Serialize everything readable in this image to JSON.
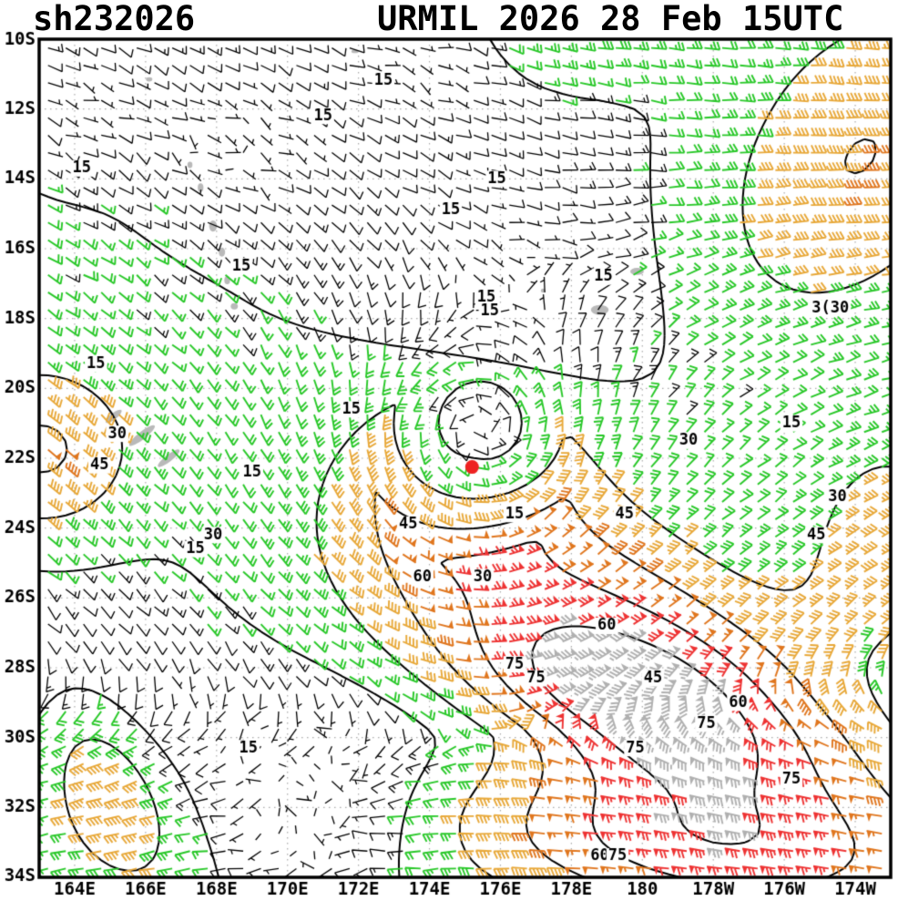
{
  "header": {
    "storm_id": "sh232026",
    "title": "URMIL 2026 28 Feb 15UTC"
  },
  "chart_data": {
    "type": "wind-barb-map",
    "title": "URMIL 2026 28 Feb 15UTC",
    "storm": {
      "id": "sh232026",
      "name": "URMIL",
      "valid_time": "2026 28 Feb 15UTC",
      "center_lon": 175.2,
      "center_lat": -22.25,
      "marker_color": "#ee2222"
    },
    "lon_range": [
      163,
      187
    ],
    "lat_range": [
      -34,
      -10
    ],
    "x_ticks": [
      {
        "lon": 164,
        "label": "164E"
      },
      {
        "lon": 166,
        "label": "166E"
      },
      {
        "lon": 168,
        "label": "168E"
      },
      {
        "lon": 170,
        "label": "170E"
      },
      {
        "lon": 172,
        "label": "172E"
      },
      {
        "lon": 174,
        "label": "174E"
      },
      {
        "lon": 176,
        "label": "176E"
      },
      {
        "lon": 178,
        "label": "178E"
      },
      {
        "lon": 180,
        "label": "180"
      },
      {
        "lon": 182,
        "label": "178W"
      },
      {
        "lon": 184,
        "label": "176W"
      },
      {
        "lon": 186,
        "label": "174W"
      }
    ],
    "y_ticks": [
      {
        "lat": -10,
        "label": "10S"
      },
      {
        "lat": -12,
        "label": "12S"
      },
      {
        "lat": -14,
        "label": "14S"
      },
      {
        "lat": -16,
        "label": "16S"
      },
      {
        "lat": -18,
        "label": "18S"
      },
      {
        "lat": -20,
        "label": "20S"
      },
      {
        "lat": -22,
        "label": "22S"
      },
      {
        "lat": -24,
        "label": "24S"
      },
      {
        "lat": -26,
        "label": "26S"
      },
      {
        "lat": -28,
        "label": "28S"
      },
      {
        "lat": -30,
        "label": "30S"
      },
      {
        "lat": -32,
        "label": "32S"
      },
      {
        "lat": -34,
        "label": "34S"
      }
    ],
    "contour_levels": [
      15,
      30,
      45,
      60,
      75
    ],
    "speed_bins": [
      {
        "max": 15,
        "color": "#000000"
      },
      {
        "max": 30,
        "color": "#28c828"
      },
      {
        "max": 45,
        "color": "#e8a838"
      },
      {
        "max": 60,
        "color": "#e0761e"
      },
      {
        "max": 75,
        "color": "#ee3333"
      },
      {
        "max": 999,
        "color": "#b0b0b0"
      }
    ],
    "grid_color": "#aaaaaa",
    "land_color": "#b9b9b9",
    "barb_step_deg": 0.5,
    "contour_labels": [
      {
        "text": "15",
        "lon": 172.7,
        "lat": -11.2
      },
      {
        "text": "15",
        "lon": 171.0,
        "lat": -12.2
      },
      {
        "text": "15",
        "lon": 164.2,
        "lat": -13.7
      },
      {
        "text": "15",
        "lon": 175.9,
        "lat": -14.0
      },
      {
        "text": "15",
        "lon": 174.6,
        "lat": -14.9
      },
      {
        "text": "15",
        "lon": 168.7,
        "lat": -16.5
      },
      {
        "text": "15",
        "lon": 178.9,
        "lat": -16.8
      },
      {
        "text": "15",
        "lon": 175.6,
        "lat": -17.4
      },
      {
        "text": "15",
        "lon": 175.7,
        "lat": -17.8
      },
      {
        "text": "3(30",
        "lon": 185.3,
        "lat": -17.7
      },
      {
        "text": "15",
        "lon": 164.6,
        "lat": -19.3
      },
      {
        "text": "15",
        "lon": 171.8,
        "lat": -20.6
      },
      {
        "text": "30",
        "lon": 165.2,
        "lat": -21.3
      },
      {
        "text": "15",
        "lon": 184.2,
        "lat": -21.0
      },
      {
        "text": "30",
        "lon": 181.3,
        "lat": -21.5
      },
      {
        "text": "45",
        "lon": 164.7,
        "lat": -22.2
      },
      {
        "text": "15",
        "lon": 169.0,
        "lat": -22.4
      },
      {
        "text": "30",
        "lon": 185.5,
        "lat": -23.1
      },
      {
        "text": "15",
        "lon": 176.4,
        "lat": -23.6
      },
      {
        "text": "45",
        "lon": 179.5,
        "lat": -23.6
      },
      {
        "text": "45",
        "lon": 173.4,
        "lat": -23.9
      },
      {
        "text": "30",
        "lon": 167.9,
        "lat": -24.2
      },
      {
        "text": "45",
        "lon": 184.9,
        "lat": -24.2
      },
      {
        "text": "15",
        "lon": 167.4,
        "lat": -24.6
      },
      {
        "text": "60",
        "lon": 173.8,
        "lat": -25.4
      },
      {
        "text": "30",
        "lon": 175.5,
        "lat": -25.4
      },
      {
        "text": "60",
        "lon": 179.0,
        "lat": -26.8
      },
      {
        "text": "75",
        "lon": 176.4,
        "lat": -27.9
      },
      {
        "text": "75",
        "lon": 177.0,
        "lat": -28.3
      },
      {
        "text": "45",
        "lon": 180.3,
        "lat": -28.3
      },
      {
        "text": "60",
        "lon": 182.7,
        "lat": -29.0
      },
      {
        "text": "75",
        "lon": 181.8,
        "lat": -29.6
      },
      {
        "text": "75",
        "lon": 179.8,
        "lat": -30.3
      },
      {
        "text": "15",
        "lon": 168.9,
        "lat": -30.3
      },
      {
        "text": "75",
        "lon": 184.2,
        "lat": -31.2
      },
      {
        "text": "60",
        "lon": 178.8,
        "lat": -33.4
      },
      {
        "text": "75",
        "lon": 179.3,
        "lat": -33.4
      }
    ],
    "land_blobs": [
      {
        "lon": 165.1,
        "lat": -20.8,
        "rx": 0.28,
        "ry": 0.09,
        "rot": -38
      },
      {
        "lon": 165.9,
        "lat": -21.35,
        "rx": 0.45,
        "ry": 0.11,
        "rot": -38
      },
      {
        "lon": 166.65,
        "lat": -22.0,
        "rx": 0.38,
        "ry": 0.1,
        "rot": -38
      },
      {
        "lon": 167.9,
        "lat": -15.35,
        "rx": 0.11,
        "ry": 0.16,
        "rot": 0
      },
      {
        "lon": 168.15,
        "lat": -16.1,
        "rx": 0.09,
        "ry": 0.13,
        "rot": 0
      },
      {
        "lon": 168.3,
        "lat": -16.9,
        "rx": 0.08,
        "ry": 0.12,
        "rot": 0
      },
      {
        "lon": 168.5,
        "lat": -17.65,
        "rx": 0.1,
        "ry": 0.09,
        "rot": 0
      },
      {
        "lon": 167.55,
        "lat": -14.25,
        "rx": 0.08,
        "ry": 0.12,
        "rot": 0
      },
      {
        "lon": 167.25,
        "lat": -13.6,
        "rx": 0.07,
        "ry": 0.09,
        "rot": 0
      },
      {
        "lon": 178.8,
        "lat": -17.75,
        "rx": 0.25,
        "ry": 0.14,
        "rot": 0
      },
      {
        "lon": 179.85,
        "lat": -16.65,
        "rx": 0.19,
        "ry": 0.1,
        "rot": 0
      },
      {
        "lon": 166.1,
        "lat": -11.15,
        "rx": 0.09,
        "ry": 0.06,
        "rot": 0
      },
      {
        "lon": 171.9,
        "lat": -10.35,
        "rx": 0.1,
        "ry": 0.05,
        "rot": 0
      },
      {
        "lon": 177.2,
        "lat": -17.2,
        "rx": 0.06,
        "ry": 0.06,
        "rot": 0
      }
    ],
    "wind_model": {
      "vortex": {
        "lon": 175.2,
        "lat": -22.25,
        "vmax": 32,
        "rmax": 2.8,
        "decay": 1.1,
        "inner_exp": 1.2
      },
      "trades": {
        "u": -19,
        "v": 4,
        "center_lat": -12,
        "width": 13
      },
      "westerlies": {
        "u": 25,
        "center_lat": -33.5,
        "width": 4.5
      },
      "bumps": [
        {
          "lon": 180.2,
          "lat": -28.4,
          "sx": 7.0,
          "sy": 3.4,
          "rot": -25,
          "amp": 58
        },
        {
          "lon": 179.8,
          "lat": -29.2,
          "sx": 4.5,
          "sy": 1.8,
          "rot": -15,
          "amp": 32
        },
        {
          "lon": 181.5,
          "lat": -33.2,
          "sx": 7.0,
          "sy": 2.2,
          "rot": -8,
          "amp": 40
        },
        {
          "lon": 186.0,
          "lat": -13.5,
          "sx": 3.4,
          "sy": 5.5,
          "rot": -35,
          "amp": 30
        },
        {
          "lon": 163.0,
          "lat": -21.8,
          "sx": 2.6,
          "sy": 2.4,
          "rot": 0,
          "amp": 34
        },
        {
          "lon": 164.9,
          "lat": -31.3,
          "sx": 1.5,
          "sy": 2.8,
          "rot": 25,
          "amp": 26
        },
        {
          "lon": 187.0,
          "lat": -24.5,
          "sx": 2.6,
          "sy": 3.5,
          "rot": 0,
          "amp": 28
        },
        {
          "lon": 178.5,
          "lat": -9.8,
          "sx": 3.2,
          "sy": 1.4,
          "rot": 0,
          "amp": 16
        },
        {
          "lon": 168.3,
          "lat": -13.0,
          "sx": 2.6,
          "sy": 2.2,
          "rot": 0,
          "amp": -13
        },
        {
          "lon": 163.8,
          "lat": -12.0,
          "sx": 2.2,
          "sy": 2.0,
          "rot": 0,
          "amp": -12
        },
        {
          "lon": 173.8,
          "lat": -10.6,
          "sx": 2.4,
          "sy": 1.6,
          "rot": 0,
          "amp": -11
        },
        {
          "lon": 170.8,
          "lat": -32.3,
          "sx": 2.8,
          "sy": 2.6,
          "rot": 0,
          "amp": -22
        }
      ],
      "cap": 95
    }
  }
}
